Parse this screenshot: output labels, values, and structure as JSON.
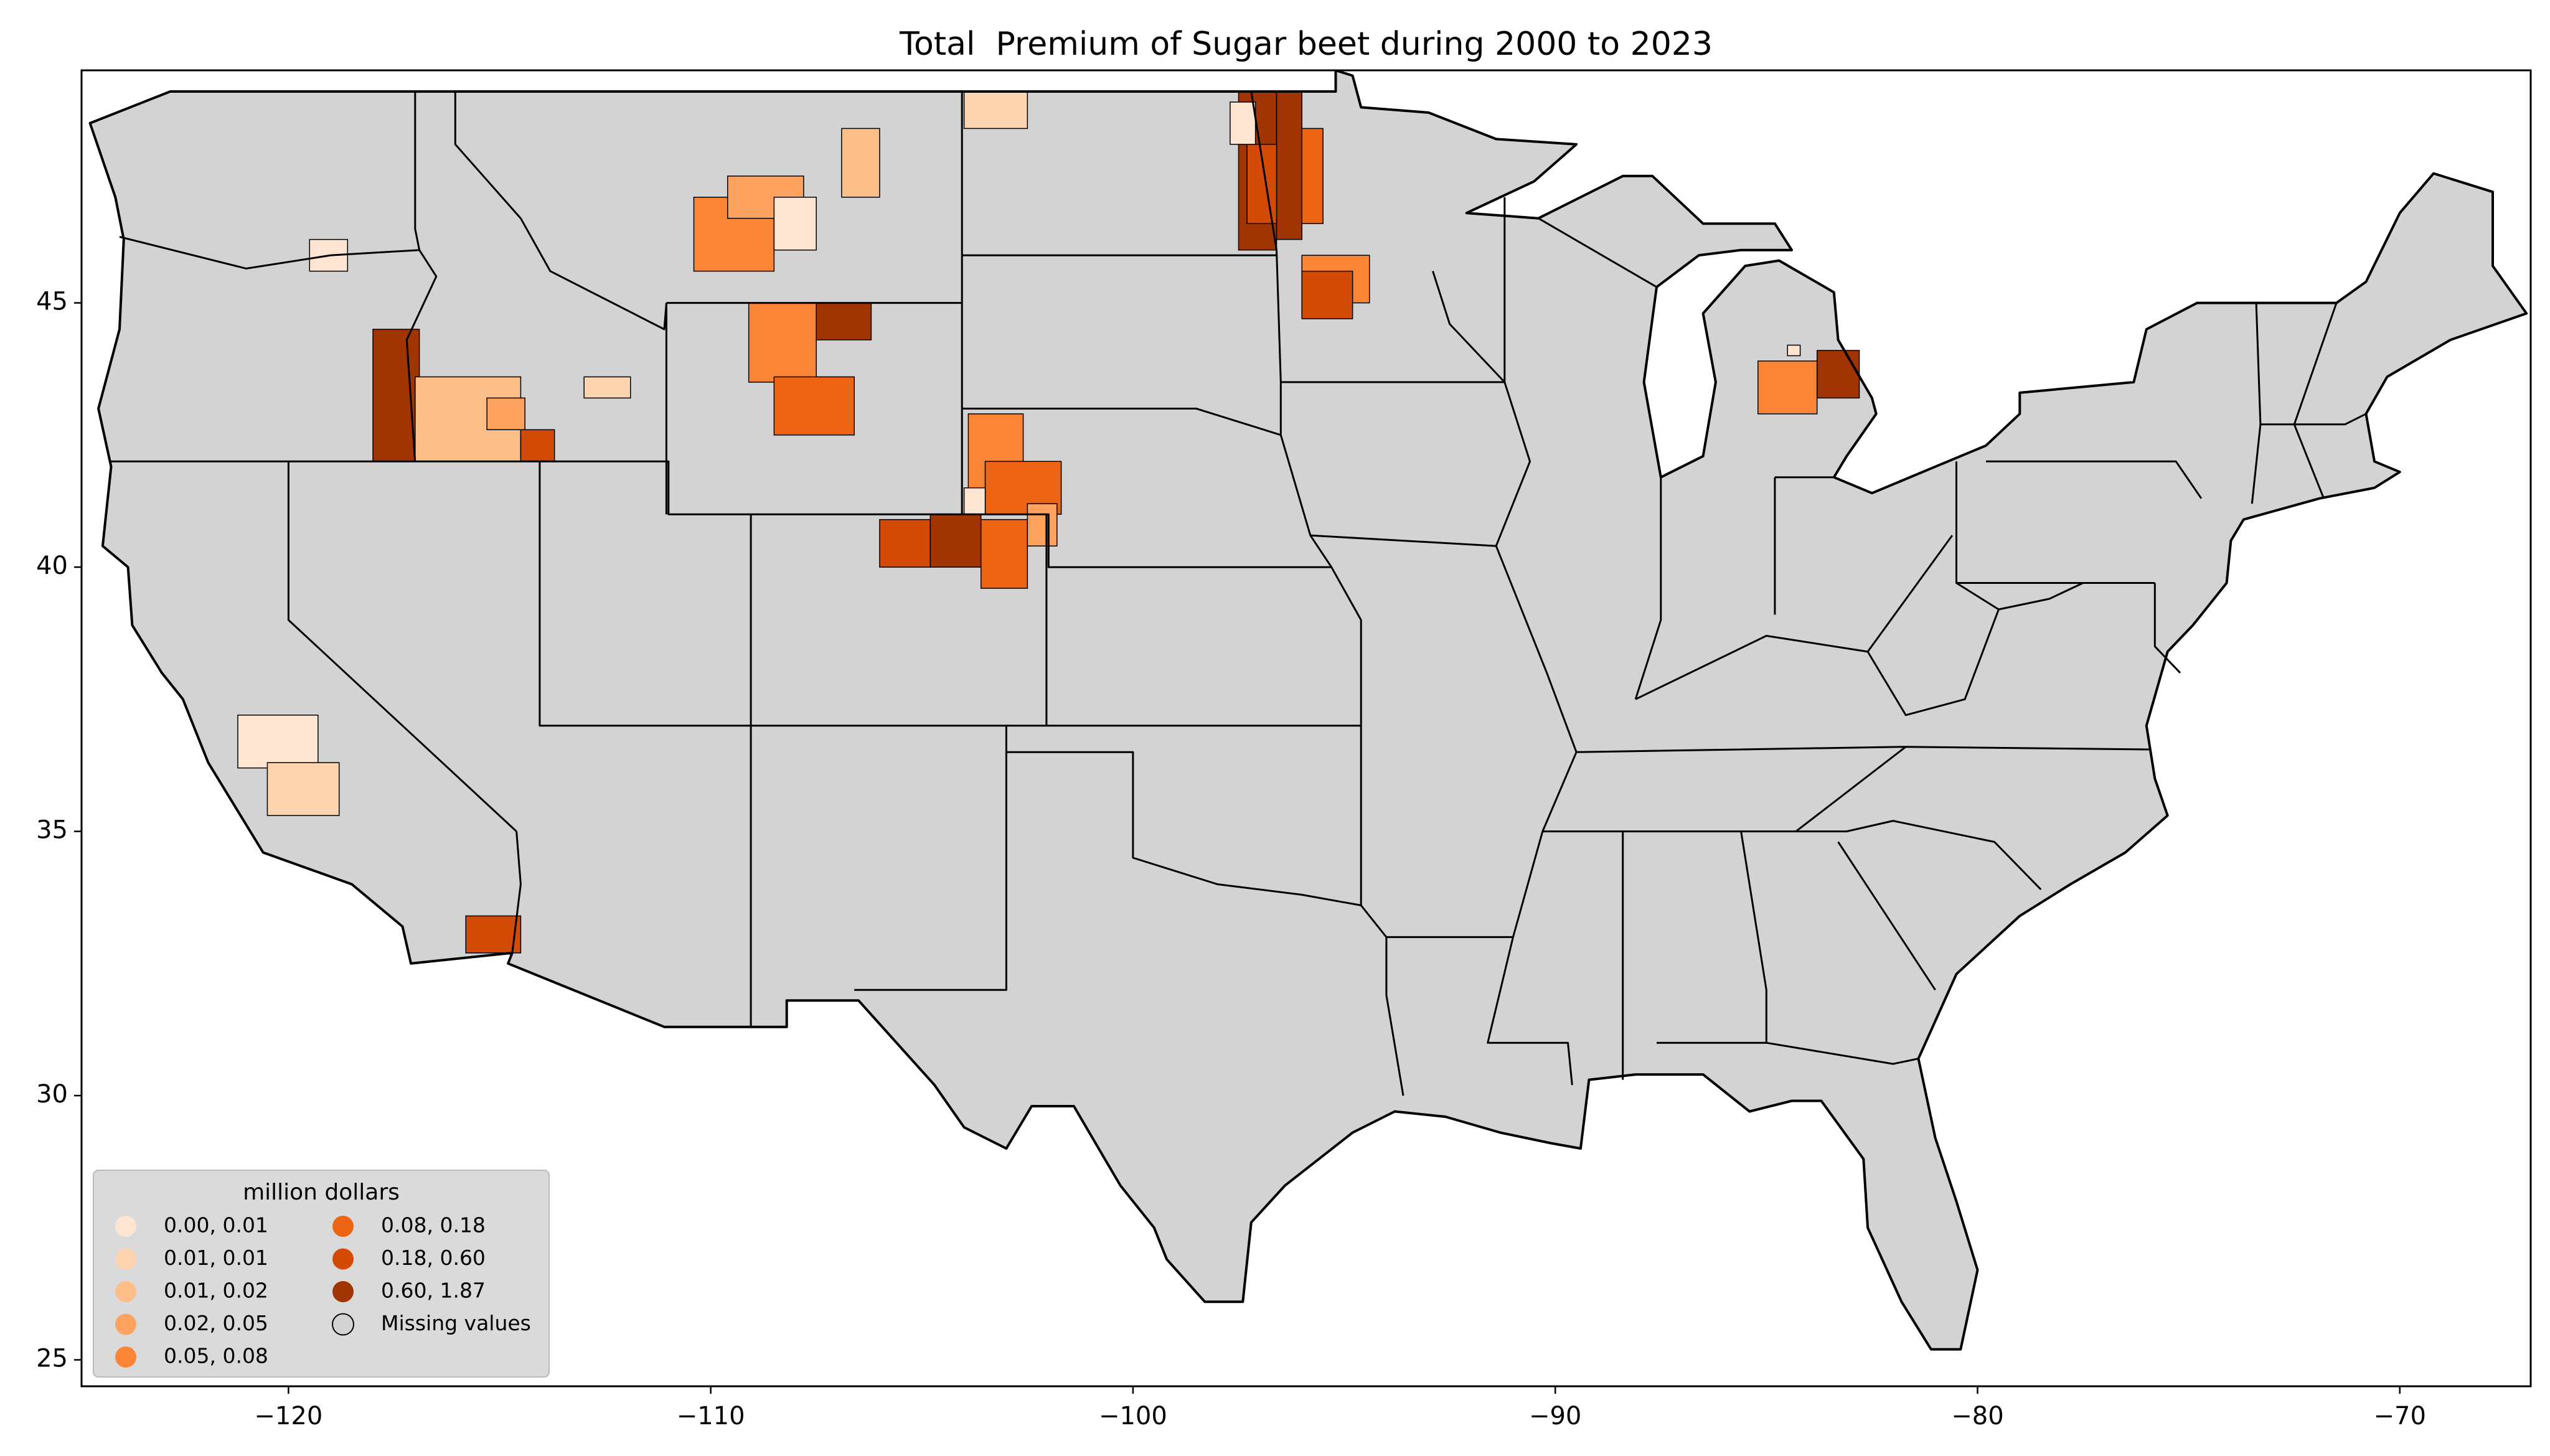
{
  "chart_data": {
    "type": "choropleth",
    "title": "Total  Premium of Sugar beet during 2000 to 2023",
    "xlim": [
      -124.9,
      -66.9
    ],
    "ylim": [
      24.5,
      49.4
    ],
    "xticks": [
      {
        "value": -120,
        "label": "−120"
      },
      {
        "value": -110,
        "label": "−110"
      },
      {
        "value": -100,
        "label": "−100"
      },
      {
        "value": -90,
        "label": "−90"
      },
      {
        "value": -80,
        "label": "−80"
      },
      {
        "value": -70,
        "label": "−70"
      }
    ],
    "yticks": [
      25,
      30,
      35,
      40,
      45
    ],
    "legend_loc": "lower left",
    "legend": {
      "title": "million dollars",
      "entries": [
        {
          "label": "0.00, 0.01",
          "color": "#fde5d2"
        },
        {
          "label": "0.01, 0.01",
          "color": "#fdd4b0"
        },
        {
          "label": "0.01, 0.02",
          "color": "#fdbf8a"
        },
        {
          "label": "0.02, 0.05",
          "color": "#fda35f"
        },
        {
          "label": "0.05, 0.08",
          "color": "#fb8537"
        },
        {
          "label": "0.08, 0.18",
          "color": "#ed6414"
        },
        {
          "label": "0.18, 0.60",
          "color": "#d24a06"
        },
        {
          "label": "0.60, 1.87",
          "color": "#a03403"
        },
        {
          "label": "Missing values",
          "color": "#d3d3d3"
        }
      ]
    }
  }
}
